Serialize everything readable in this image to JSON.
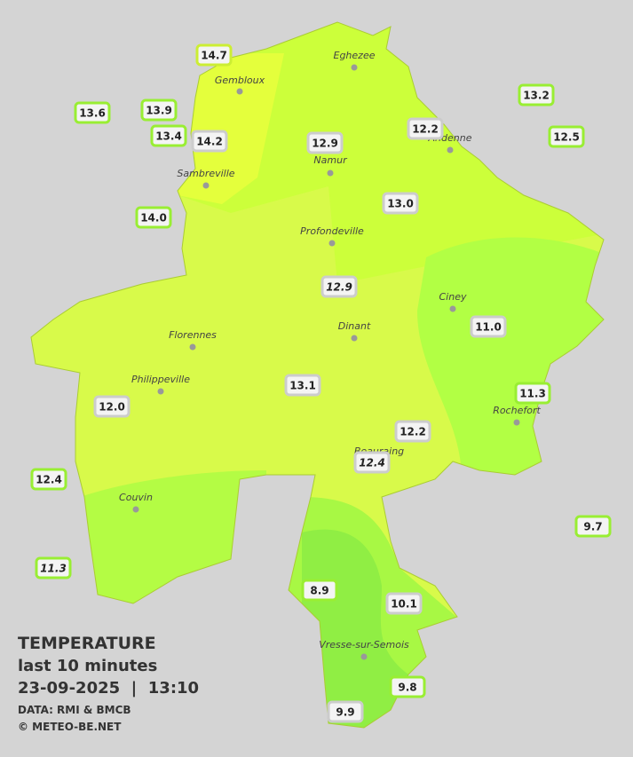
{
  "header": {
    "title": "TEMPERATURE",
    "subtitle": "last 10 minutes",
    "datetime": "23-09-2025  |  13:10",
    "source": "DATA: RMI & BMCB",
    "copyright": "© METEO-BE.NET"
  },
  "cities": [
    {
      "label": "Eghezee"
    },
    {
      "label": "Gembloux"
    },
    {
      "label": "Andenne"
    },
    {
      "label": "Namur"
    },
    {
      "label": "Sambreville"
    },
    {
      "label": "Profondeville"
    },
    {
      "label": "Ciney"
    },
    {
      "label": "Dinant"
    },
    {
      "label": "Florennes"
    },
    {
      "label": "Philippeville"
    },
    {
      "label": "Rochefort"
    },
    {
      "label": "Beauraing"
    },
    {
      "label": "Couvin"
    },
    {
      "label": "Vresse-sur-Semois"
    }
  ],
  "stations": [
    {
      "label": "14.7"
    },
    {
      "label": "13.6"
    },
    {
      "label": "13.9"
    },
    {
      "label": "13.4"
    },
    {
      "label": "14.2"
    },
    {
      "label": "12.9"
    },
    {
      "label": "12.2"
    },
    {
      "label": "13.2"
    },
    {
      "label": "12.5"
    },
    {
      "label": "14.0"
    },
    {
      "label": "13.0"
    },
    {
      "label": "12.9"
    },
    {
      "label": "11.0"
    },
    {
      "label": "13.1"
    },
    {
      "label": "11.3"
    },
    {
      "label": "12.0"
    },
    {
      "label": "12.2"
    },
    {
      "label": "12.4"
    },
    {
      "label": "12.4"
    },
    {
      "label": "9.7"
    },
    {
      "label": "11.3"
    },
    {
      "label": "8.9"
    },
    {
      "label": "10.1"
    },
    {
      "label": "9.8"
    },
    {
      "label": "9.9"
    }
  ]
}
